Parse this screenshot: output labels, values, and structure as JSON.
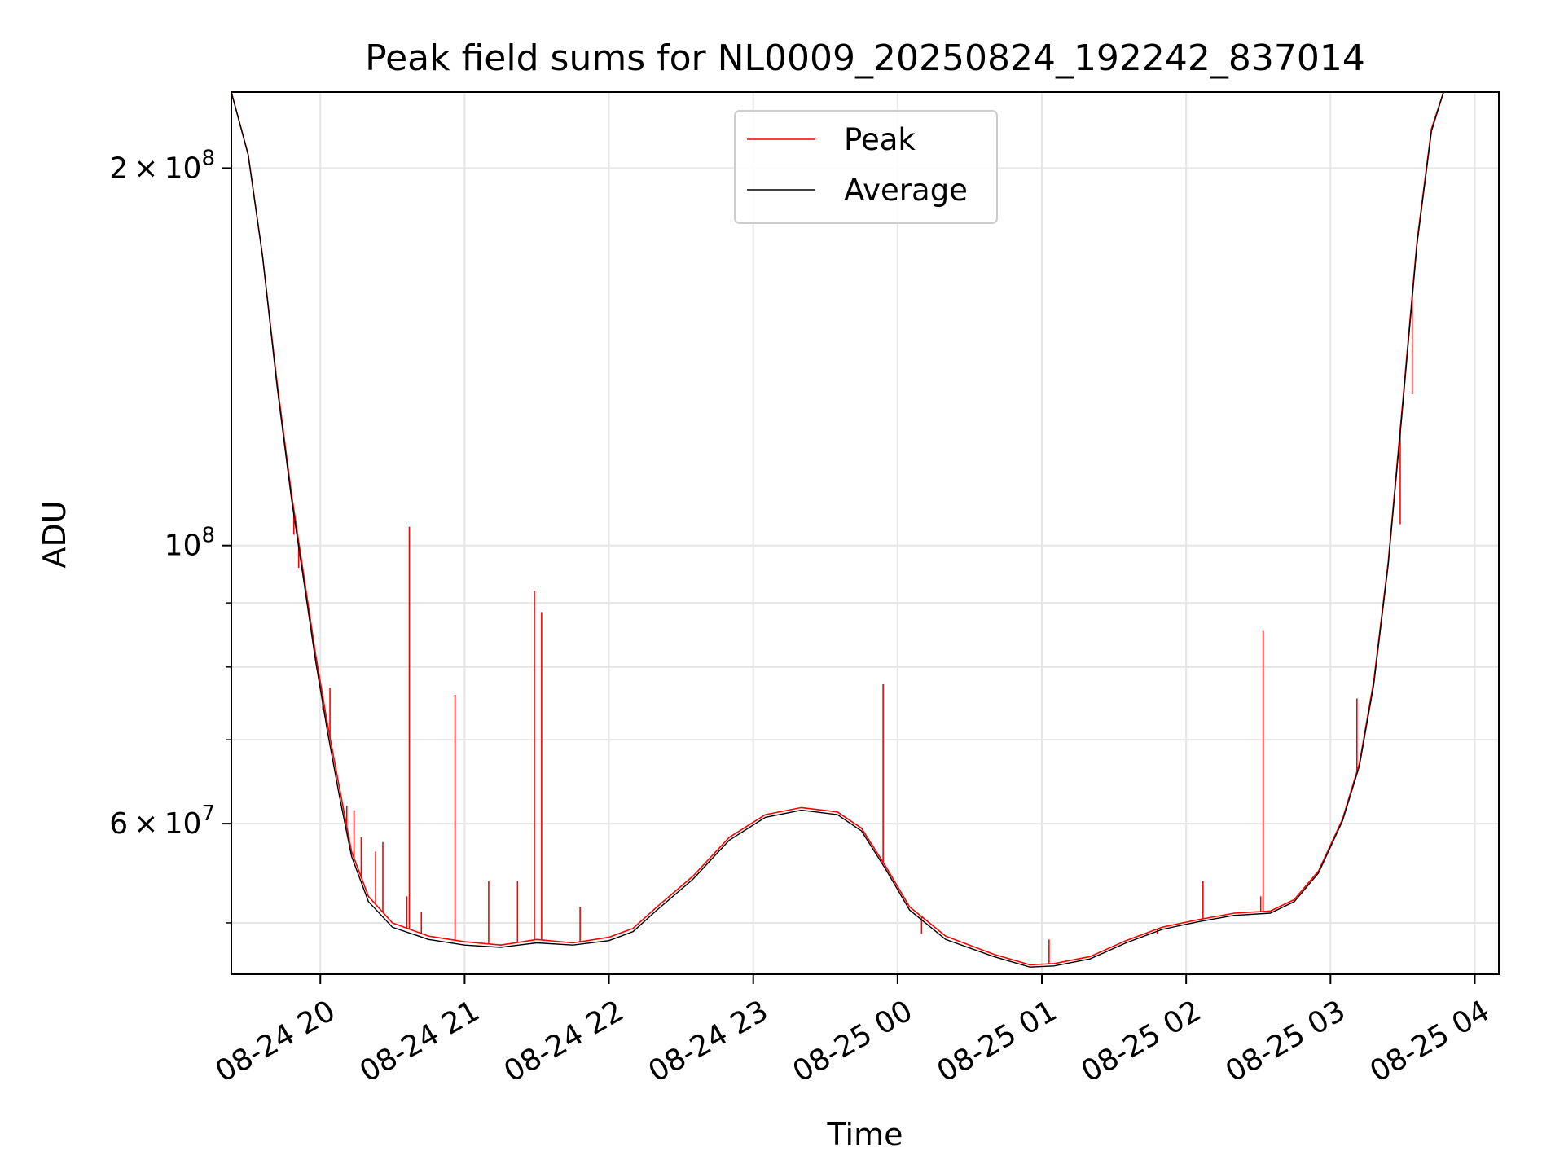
{
  "chart_data": {
    "type": "line",
    "title": "Peak field sums for NL0009_20250824_192242_837014",
    "xlabel": "Time",
    "ylabel": "ADU",
    "yscale": "log",
    "ylim": [
      45500000,
      230000000
    ],
    "xlim": [
      "2025-08-24 19:23",
      "2025-08-25 04:10"
    ],
    "grid": true,
    "legend_position": "top-center",
    "x_ticks": [
      "08-24 20",
      "08-24 21",
      "08-24 22",
      "08-24 23",
      "08-25 00",
      "08-25 01",
      "08-25 02",
      "08-25 03",
      "08-25 04"
    ],
    "y_ticks": [
      {
        "value": 200000000,
        "base": "2 × 10",
        "exp": "8"
      },
      {
        "value": 100000000,
        "base": "10",
        "exp": "8"
      },
      {
        "value": 60000000,
        "base": "6 × 10",
        "exp": "7"
      }
    ],
    "y_minor_ticks": [
      50000000,
      70000000,
      80000000,
      90000000
    ],
    "series": [
      {
        "name": "Peak",
        "color": "#ff0000",
        "points": [
          [
            "2025-08-24 19:23",
            230000000
          ],
          [
            "2025-08-24 19:30",
            205000000
          ],
          [
            "2025-08-24 19:36",
            170000000
          ],
          [
            "2025-08-24 19:42",
            135000000
          ],
          [
            "2025-08-24 19:48",
            110000000
          ],
          [
            "2025-08-24 19:53",
            95000000
          ],
          [
            "2025-08-24 19:58",
            82000000
          ],
          [
            "2025-08-24 20:03",
            72000000
          ],
          [
            "2025-08-24 20:08",
            64000000
          ],
          [
            "2025-08-24 20:13",
            57000000
          ],
          [
            "2025-08-24 20:20",
            52500000
          ],
          [
            "2025-08-24 20:30",
            50000000
          ],
          [
            "2025-08-24 20:45",
            48800000
          ],
          [
            "2025-08-24 21:00",
            48300000
          ],
          [
            "2025-08-24 21:15",
            48000000
          ],
          [
            "2025-08-24 21:30",
            48500000
          ],
          [
            "2025-08-24 21:45",
            48200000
          ],
          [
            "2025-08-24 22:00",
            48700000
          ],
          [
            "2025-08-24 22:10",
            49500000
          ],
          [
            "2025-08-24 22:20",
            51500000
          ],
          [
            "2025-08-24 22:35",
            54500000
          ],
          [
            "2025-08-24 22:50",
            58500000
          ],
          [
            "2025-08-24 23:05",
            61000000
          ],
          [
            "2025-08-24 23:20",
            61800000
          ],
          [
            "2025-08-24 23:35",
            61300000
          ],
          [
            "2025-08-24 23:45",
            59500000
          ],
          [
            "2025-08-24 23:55",
            55500000
          ],
          [
            "2025-08-25 00:05",
            51500000
          ],
          [
            "2025-08-25 00:20",
            48800000
          ],
          [
            "2025-08-25 00:40",
            47200000
          ],
          [
            "2025-08-25 00:55",
            46300000
          ],
          [
            "2025-08-25 01:05",
            46400000
          ],
          [
            "2025-08-25 01:20",
            47000000
          ],
          [
            "2025-08-25 01:35",
            48400000
          ],
          [
            "2025-08-25 01:50",
            49600000
          ],
          [
            "2025-08-25 02:05",
            50300000
          ],
          [
            "2025-08-25 02:20",
            50900000
          ],
          [
            "2025-08-25 02:35",
            51100000
          ],
          [
            "2025-08-25 02:45",
            52200000
          ],
          [
            "2025-08-25 02:55",
            55000000
          ],
          [
            "2025-08-25 03:05",
            60500000
          ],
          [
            "2025-08-25 03:12",
            67000000
          ],
          [
            "2025-08-25 03:18",
            78000000
          ],
          [
            "2025-08-25 03:24",
            97000000
          ],
          [
            "2025-08-25 03:30",
            130000000
          ],
          [
            "2025-08-25 03:36",
            175000000
          ],
          [
            "2025-08-25 03:42",
            215000000
          ],
          [
            "2025-08-25 03:47",
            230000000
          ],
          [
            "2025-08-25 04:10",
            230000000
          ]
        ],
        "spikes": [
          [
            "2025-08-24 19:49",
            102000000
          ],
          [
            "2025-08-24 19:51",
            96000000
          ],
          [
            "2025-08-24 20:01",
            74000000
          ],
          [
            "2025-08-24 20:04",
            77000000
          ],
          [
            "2025-08-24 20:11",
            62000000
          ],
          [
            "2025-08-24 20:14",
            61500000
          ],
          [
            "2025-08-24 20:17",
            58500000
          ],
          [
            "2025-08-24 20:23",
            57000000
          ],
          [
            "2025-08-24 20:26",
            58000000
          ],
          [
            "2025-08-24 20:36",
            52500000
          ],
          [
            "2025-08-24 20:37",
            103500000
          ],
          [
            "2025-08-24 20:42",
            51000000
          ],
          [
            "2025-08-24 20:56",
            76000000
          ],
          [
            "2025-08-24 21:10",
            54000000
          ],
          [
            "2025-08-24 21:22",
            54000000
          ],
          [
            "2025-08-24 21:29",
            92000000
          ],
          [
            "2025-08-24 21:32",
            88500000
          ],
          [
            "2025-08-24 21:48",
            51500000
          ],
          [
            "2025-08-24 23:54",
            77500000
          ],
          [
            "2025-08-25 00:10",
            49000000
          ],
          [
            "2025-08-25 01:03",
            48500000
          ],
          [
            "2025-08-25 01:48",
            49000000
          ],
          [
            "2025-08-25 02:07",
            54000000
          ],
          [
            "2025-08-25 02:31",
            52500000
          ],
          [
            "2025-08-25 02:32",
            85500000
          ],
          [
            "2025-08-25 03:11",
            75500000
          ],
          [
            "2025-08-25 03:29",
            104000000
          ],
          [
            "2025-08-25 03:34",
            132000000
          ]
        ]
      },
      {
        "name": "Average",
        "color": "#000000",
        "points": [
          [
            "2025-08-24 19:23",
            230000000
          ],
          [
            "2025-08-24 19:30",
            205000000
          ],
          [
            "2025-08-24 19:36",
            170000000
          ],
          [
            "2025-08-24 19:42",
            134000000
          ],
          [
            "2025-08-24 19:48",
            109000000
          ],
          [
            "2025-08-24 19:53",
            94000000
          ],
          [
            "2025-08-24 19:58",
            81000000
          ],
          [
            "2025-08-24 20:03",
            71000000
          ],
          [
            "2025-08-24 20:08",
            63000000
          ],
          [
            "2025-08-24 20:13",
            56500000
          ],
          [
            "2025-08-24 20:20",
            52000000
          ],
          [
            "2025-08-24 20:30",
            49600000
          ],
          [
            "2025-08-24 20:45",
            48500000
          ],
          [
            "2025-08-24 21:00",
            48000000
          ],
          [
            "2025-08-24 21:15",
            47800000
          ],
          [
            "2025-08-24 21:30",
            48200000
          ],
          [
            "2025-08-24 21:45",
            48000000
          ],
          [
            "2025-08-24 22:00",
            48400000
          ],
          [
            "2025-08-24 22:10",
            49200000
          ],
          [
            "2025-08-24 22:20",
            51200000
          ],
          [
            "2025-08-24 22:35",
            54200000
          ],
          [
            "2025-08-24 22:50",
            58200000
          ],
          [
            "2025-08-24 23:05",
            60700000
          ],
          [
            "2025-08-24 23:20",
            61500000
          ],
          [
            "2025-08-24 23:35",
            61000000
          ],
          [
            "2025-08-24 23:45",
            59200000
          ],
          [
            "2025-08-24 23:55",
            55200000
          ],
          [
            "2025-08-25 00:05",
            51200000
          ],
          [
            "2025-08-25 00:20",
            48500000
          ],
          [
            "2025-08-25 00:40",
            47000000
          ],
          [
            "2025-08-25 00:55",
            46100000
          ],
          [
            "2025-08-25 01:05",
            46200000
          ],
          [
            "2025-08-25 01:20",
            46800000
          ],
          [
            "2025-08-25 01:35",
            48200000
          ],
          [
            "2025-08-25 01:50",
            49400000
          ],
          [
            "2025-08-25 02:05",
            50100000
          ],
          [
            "2025-08-25 02:20",
            50700000
          ],
          [
            "2025-08-25 02:35",
            50900000
          ],
          [
            "2025-08-25 02:45",
            52000000
          ],
          [
            "2025-08-25 02:55",
            54800000
          ],
          [
            "2025-08-25 03:05",
            60300000
          ],
          [
            "2025-08-25 03:12",
            66700000
          ],
          [
            "2025-08-25 03:18",
            77500000
          ],
          [
            "2025-08-25 03:24",
            96500000
          ],
          [
            "2025-08-25 03:30",
            129000000
          ],
          [
            "2025-08-25 03:36",
            174000000
          ],
          [
            "2025-08-25 03:42",
            214000000
          ],
          [
            "2025-08-25 03:47",
            230000000
          ],
          [
            "2025-08-25 04:10",
            230000000
          ]
        ]
      }
    ]
  }
}
